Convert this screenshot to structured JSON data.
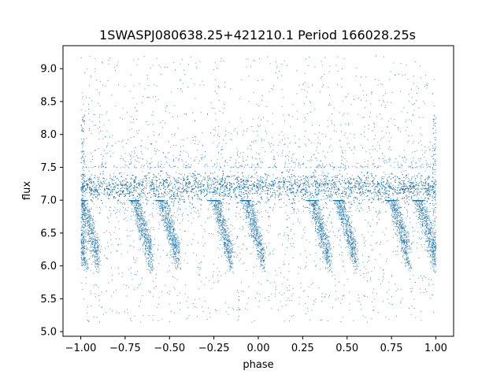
{
  "chart_data": {
    "type": "scatter",
    "title": "1SWASPJ080638.25+421210.1 Period 166028.25s",
    "xlabel": "phase",
    "ylabel": "flux",
    "xlim": [
      -1.1,
      1.1
    ],
    "ylim": [
      4.93,
      9.35
    ],
    "xticks": [
      -1.0,
      -0.75,
      -0.5,
      -0.25,
      0.0,
      0.25,
      0.5,
      0.75,
      1.0
    ],
    "xtick_labels": [
      "−1.00",
      "−0.75",
      "−0.50",
      "−0.25",
      "0.00",
      "0.25",
      "0.50",
      "0.75",
      "1.00"
    ],
    "yticks": [
      5.0,
      5.5,
      6.0,
      6.5,
      7.0,
      7.5,
      8.0,
      8.5,
      9.0
    ],
    "ytick_labels": [
      "5.0",
      "5.5",
      "6.0",
      "6.5",
      "7.0",
      "7.5",
      "8.0",
      "8.5",
      "9.0"
    ],
    "grid": false,
    "marker_color": "#1f77b4",
    "description_of_data": {
      "phase_range": [
        -1.0,
        1.0
      ],
      "main_band_flux": [
        6.95,
        7.5
      ],
      "main_band_center": 7.2,
      "dip_flux_min": 5.9,
      "dip_phases": [
        -0.97,
        -0.9,
        -0.6,
        -0.45,
        -0.15,
        0.03,
        0.4,
        0.55,
        0.85,
        1.0
      ],
      "outlier_flux_range": [
        5.1,
        9.2
      ]
    }
  }
}
